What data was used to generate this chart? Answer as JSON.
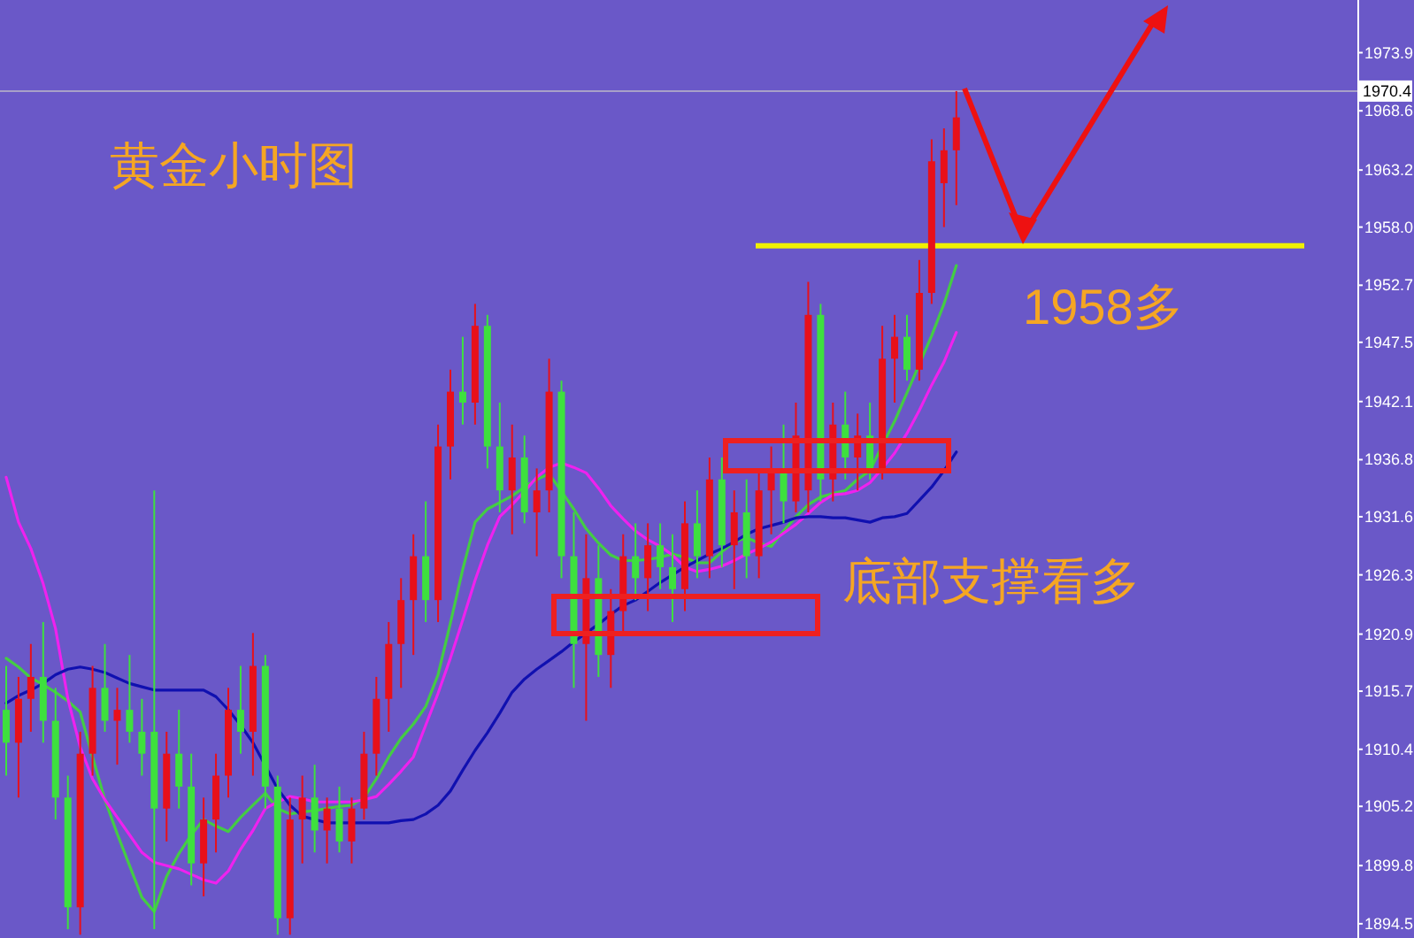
{
  "chart_data": {
    "type": "candlestick",
    "title": "黄金小时图",
    "categories": [
      null,
      null,
      null,
      null,
      null,
      null,
      null,
      null,
      null,
      null,
      null,
      null,
      null,
      null,
      null,
      null,
      null,
      null,
      null,
      null,
      null,
      null,
      null,
      null,
      null,
      null,
      null,
      null,
      null,
      null,
      null,
      null,
      null,
      null,
      null,
      null,
      null,
      null,
      null,
      null,
      null,
      null,
      null,
      null,
      null,
      null,
      null,
      null,
      null,
      null,
      null,
      null,
      null,
      null,
      null,
      null,
      null,
      null,
      null,
      null,
      null,
      null,
      null,
      null,
      null,
      null,
      null,
      null,
      null,
      null,
      null,
      null,
      null,
      null,
      null,
      null,
      null,
      null,
      null,
      null,
      null,
      null,
      null,
      null,
      null,
      null,
      null,
      null,
      null,
      null,
      null,
      null,
      null,
      null,
      null,
      null,
      null,
      null,
      null,
      null,
      null,
      null,
      null,
      null,
      null,
      null,
      null,
      null,
      null,
      null
    ],
    "ohlc": [
      [
        1914,
        1918,
        1908,
        1911
      ],
      [
        1911,
        1917,
        1906,
        1915
      ],
      [
        1915,
        1920,
        1912,
        1917
      ],
      [
        1917,
        1922,
        1911,
        1913
      ],
      [
        1913,
        1916,
        1904,
        1906
      ],
      [
        1906,
        1908,
        1894,
        1896
      ],
      [
        1896,
        1912,
        1893.5,
        1910
      ],
      [
        1910,
        1918,
        1908,
        1916
      ],
      [
        1916,
        1920,
        1912,
        1913
      ],
      [
        1913,
        1916,
        1909,
        1914
      ],
      [
        1914,
        1919,
        1911,
        1912
      ],
      [
        1912,
        1915,
        1908,
        1910
      ],
      [
        1912,
        1934,
        1894,
        1905
      ],
      [
        1905,
        1912,
        1902,
        1910
      ],
      [
        1910,
        1914,
        1905,
        1907
      ],
      [
        1907,
        1910,
        1898,
        1900
      ],
      [
        1900,
        1906,
        1897,
        1904
      ],
      [
        1904,
        1910,
        1901,
        1908
      ],
      [
        1908,
        1916,
        1906,
        1914
      ],
      [
        1914,
        1918,
        1910,
        1912
      ],
      [
        1912,
        1921,
        1908,
        1918
      ],
      [
        1918,
        1919,
        1905,
        1907
      ],
      [
        1907,
        1908,
        1893.5,
        1895
      ],
      [
        1895,
        1906,
        1893.5,
        1904
      ],
      [
        1904,
        1908,
        1900,
        1906
      ],
      [
        1906,
        1909,
        1901,
        1903
      ],
      [
        1903,
        1906,
        1900,
        1905
      ],
      [
        1905,
        1907,
        1901,
        1902
      ],
      [
        1902,
        1906,
        1900,
        1905
      ],
      [
        1905,
        1912,
        1904,
        1910
      ],
      [
        1910,
        1917,
        1908,
        1915
      ],
      [
        1915,
        1922,
        1912,
        1920
      ],
      [
        1920,
        1926,
        1916,
        1924
      ],
      [
        1924,
        1930,
        1919,
        1928
      ],
      [
        1928,
        1933,
        1922,
        1924
      ],
      [
        1924,
        1940,
        1922,
        1938
      ],
      [
        1938,
        1945,
        1935,
        1943
      ],
      [
        1943,
        1948,
        1940,
        1942
      ],
      [
        1942,
        1951,
        1940,
        1949
      ],
      [
        1949,
        1950,
        1936,
        1938
      ],
      [
        1938,
        1942,
        1932,
        1934
      ],
      [
        1934,
        1940,
        1930,
        1937
      ],
      [
        1937,
        1939,
        1931,
        1932
      ],
      [
        1932,
        1936,
        1928,
        1934
      ],
      [
        1934,
        1946,
        1932,
        1943
      ],
      [
        1943,
        1944,
        1926,
        1928
      ],
      [
        1928,
        1932,
        1916,
        1920
      ],
      [
        1920,
        1930,
        1913,
        1926
      ],
      [
        1926,
        1929,
        1917,
        1919
      ],
      [
        1919,
        1925,
        1916,
        1923
      ],
      [
        1923,
        1930,
        1921,
        1928
      ],
      [
        1928,
        1931,
        1924,
        1926
      ],
      [
        1926,
        1931,
        1923,
        1929
      ],
      [
        1929,
        1931,
        1925,
        1927
      ],
      [
        1927,
        1930,
        1922,
        1925
      ],
      [
        1925,
        1933,
        1923,
        1931
      ],
      [
        1931,
        1934,
        1926,
        1928
      ],
      [
        1928,
        1937,
        1926,
        1935
      ],
      [
        1935,
        1937,
        1927,
        1929
      ],
      [
        1929,
        1934,
        1925,
        1932
      ],
      [
        1932,
        1935,
        1926,
        1928
      ],
      [
        1928,
        1936,
        1926,
        1934
      ],
      [
        1934,
        1938,
        1930,
        1936
      ],
      [
        1936,
        1940,
        1931,
        1933
      ],
      [
        1933,
        1942,
        1932,
        1939
      ],
      [
        1934,
        1953,
        1932,
        1950
      ],
      [
        1950,
        1951,
        1933,
        1935
      ],
      [
        1935,
        1942,
        1933,
        1940
      ],
      [
        1940,
        1943,
        1935,
        1937
      ],
      [
        1937,
        1941,
        1934,
        1939
      ],
      [
        1939,
        1942,
        1935,
        1936
      ],
      [
        1936,
        1949,
        1935,
        1946
      ],
      [
        1946,
        1950,
        1942,
        1948
      ],
      [
        1948,
        1950,
        1944,
        1945
      ],
      [
        1945,
        1955,
        1944,
        1952
      ],
      [
        1952,
        1966,
        1951,
        1964
      ],
      [
        1962,
        1967,
        1958,
        1965
      ],
      [
        1965,
        1970.4,
        1960,
        1968
      ],
      null,
      null,
      null,
      null,
      null,
      null,
      null,
      null,
      null,
      null,
      null,
      null,
      null,
      null,
      null,
      null,
      null,
      null,
      null,
      null,
      null,
      null,
      null,
      null,
      null,
      null,
      null,
      null,
      null,
      null,
      null,
      null
    ],
    "colors": [
      "#3ee03e",
      "#e8101a",
      "#e8101a",
      "#3ee03e",
      "#3ee03e",
      "#3ee03e",
      "#e8101a",
      "#e8101a",
      "#3ee03e",
      "#e8101a",
      "#3ee03e",
      "#3ee03e",
      "#3ee03e",
      "#e8101a",
      "#3ee03e",
      "#3ee03e",
      "#e8101a",
      "#e8101a",
      "#e8101a",
      "#3ee03e",
      "#e8101a",
      "#3ee03e",
      "#3ee03e",
      "#e8101a",
      "#e8101a",
      "#3ee03e",
      "#e8101a",
      "#3ee03e",
      "#e8101a",
      "#e8101a",
      "#e8101a",
      "#e8101a",
      "#e8101a",
      "#e8101a",
      "#3ee03e",
      "#e8101a",
      "#e8101a",
      "#3ee03e",
      "#e8101a",
      "#3ee03e",
      "#3ee03e",
      "#e8101a",
      "#3ee03e",
      "#e8101a",
      "#e8101a",
      "#3ee03e",
      "#3ee03e",
      "#e8101a",
      "#3ee03e",
      "#e8101a",
      "#e8101a",
      "#3ee03e",
      "#e8101a",
      "#3ee03e",
      "#3ee03e",
      "#e8101a",
      "#3ee03e",
      "#e8101a",
      "#3ee03e",
      "#e8101a",
      "#3ee03e",
      "#e8101a",
      "#e8101a",
      "#3ee03e",
      "#e8101a",
      "#e8101a",
      "#3ee03e",
      "#e8101a",
      "#3ee03e",
      "#e8101a",
      "#3ee03e",
      "#e8101a",
      "#e8101a",
      "#3ee03e",
      "#e8101a",
      "#e8101a",
      "#e8101a",
      "#e8101a",
      null,
      null,
      null,
      null,
      null,
      null,
      null,
      null,
      null,
      null,
      null,
      null,
      null,
      null,
      null,
      null,
      null,
      null,
      null,
      null,
      null,
      null,
      null,
      null,
      null,
      null,
      null,
      null,
      null,
      null,
      null,
      null
    ],
    "series": [
      {
        "type": "line",
        "color": "#44cc44",
        "values": [
          1918.7,
          1917.9,
          1916.9,
          1916.3,
          1915.6,
          1914.8,
          1913.8,
          1909.7,
          1905.8,
          1902.7,
          1899.8,
          1896.9,
          1895.6,
          1898.8,
          1900.9,
          1902.6,
          1904.0,
          1903.4,
          1902.9,
          1904.2,
          1905.3,
          1906.4,
          1905.0,
          1904.5,
          1904.7,
          1904.8,
          1905.0,
          1905.2,
          1905.3,
          1906.0,
          1907.7,
          1909.7,
          1911.4,
          1912.7,
          1914.3,
          1917.2,
          1921.9,
          1926.8,
          1931.1,
          1932.3,
          1932.9,
          1933.5,
          1934.3,
          1935.0,
          1935.5,
          1933.9,
          1932.3,
          1930.5,
          1929.2,
          1928.1,
          1927.6,
          1927.6,
          1927.7,
          1927.9,
          1928.2,
          1927.9,
          1927.4,
          1927.4,
          1928.4,
          1929.3,
          1929.7,
          1929.2,
          1928.9,
          1930.3,
          1931.6,
          1932.7,
          1933.4,
          1933.7,
          1934.0,
          1935.0,
          1935.8,
          1938.1,
          1940.3,
          1942.9,
          1945.5,
          1948.1,
          1951.0,
          1954.5,
          null,
          null,
          null,
          null,
          null,
          null,
          null,
          null,
          null,
          null,
          null,
          null,
          null,
          null,
          null,
          null,
          null,
          null,
          null,
          null,
          null,
          null,
          null,
          null,
          null,
          null,
          null,
          null,
          null,
          null,
          null,
          null
        ]
      },
      {
        "type": "line",
        "color": "#ee22ee",
        "values": [
          1935.2,
          1931.1,
          1928.7,
          1925.5,
          1921.4,
          1915.0,
          1910.6,
          1907.7,
          1905.8,
          1904.2,
          1902.6,
          1901.0,
          1900.1,
          1899.8,
          1899.5,
          1899.0,
          1898.5,
          1898.2,
          1899.3,
          1901.3,
          1903.0,
          1905.0,
          1905.6,
          1906.1,
          1905.9,
          1905.6,
          1905.6,
          1905.6,
          1905.6,
          1905.8,
          1906.1,
          1907.2,
          1908.4,
          1909.7,
          1912.6,
          1915.5,
          1918.7,
          1922.2,
          1925.8,
          1929.0,
          1931.6,
          1932.7,
          1933.9,
          1935.2,
          1936.1,
          1936.5,
          1936.1,
          1935.6,
          1934.2,
          1932.6,
          1931.4,
          1930.3,
          1929.5,
          1928.9,
          1928.1,
          1927.0,
          1926.6,
          1926.8,
          1927.1,
          1927.6,
          1928.2,
          1928.7,
          1929.3,
          1930.1,
          1930.9,
          1931.9,
          1932.9,
          1933.6,
          1933.7,
          1934.0,
          1934.7,
          1936.0,
          1937.4,
          1939.2,
          1941.3,
          1943.6,
          1945.7,
          1948.4,
          null,
          null,
          null,
          null,
          null,
          null,
          null,
          null,
          null,
          null,
          null,
          null,
          null,
          null,
          null,
          null,
          null,
          null,
          null,
          null,
          null,
          null,
          null,
          null,
          null,
          null,
          null,
          null,
          null,
          null,
          null,
          null
        ]
      },
      {
        "type": "line",
        "color": "#1010b0",
        "values": [
          1914.6,
          1915.3,
          1915.8,
          1916.4,
          1917.2,
          1917.7,
          1917.9,
          1917.7,
          1917.4,
          1916.9,
          1916.4,
          1916.1,
          1915.8,
          1915.8,
          1915.8,
          1915.8,
          1915.8,
          1915.2,
          1914.0,
          1912.6,
          1911.0,
          1908.9,
          1906.8,
          1905.3,
          1904.3,
          1904.0,
          1903.7,
          1903.7,
          1903.7,
          1903.7,
          1903.7,
          1903.7,
          1903.9,
          1904.0,
          1904.5,
          1905.3,
          1906.6,
          1908.5,
          1910.3,
          1911.9,
          1913.7,
          1915.6,
          1916.8,
          1917.7,
          1918.5,
          1919.3,
          1920.2,
          1921.0,
          1921.8,
          1922.7,
          1923.5,
          1924.0,
          1924.8,
          1925.6,
          1926.3,
          1927.0,
          1927.6,
          1928.2,
          1928.7,
          1929.3,
          1930.0,
          1930.5,
          1930.8,
          1931.1,
          1931.5,
          1931.6,
          1931.6,
          1931.5,
          1931.5,
          1931.3,
          1931.1,
          1931.5,
          1931.6,
          1931.9,
          1933.1,
          1934.3,
          1935.8,
          1937.5,
          null,
          null,
          null,
          null,
          null,
          null,
          null,
          null,
          null,
          null,
          null,
          null,
          null,
          null,
          null,
          null,
          null,
          null,
          null,
          null,
          null,
          null,
          null,
          null,
          null,
          null,
          null,
          null,
          null,
          null,
          null,
          null
        ]
      }
    ],
    "ylim": [
      1893.2,
      1978.7
    ],
    "yticks": [
      1973.9,
      1968.6,
      1963.2,
      {
        "value": 1958.0,
        "label": "1958.0"
      },
      1952.7,
      1947.5,
      1942.1,
      1936.8,
      1931.6,
      1926.3,
      1920.9,
      1915.7,
      1910.4,
      1905.2,
      1899.8,
      1894.5
    ],
    "ref_lines": [
      {
        "axis": "y",
        "value": 1970.4,
        "label": "1970.4",
        "color": "#a8a0c8"
      },
      {
        "axis": "y",
        "value": 1956.3,
        "label": "1958多",
        "color": "#f0f000"
      }
    ],
    "annotations": [
      "底部支撑看多"
    ],
    "tick_labels": "y"
  }
}
